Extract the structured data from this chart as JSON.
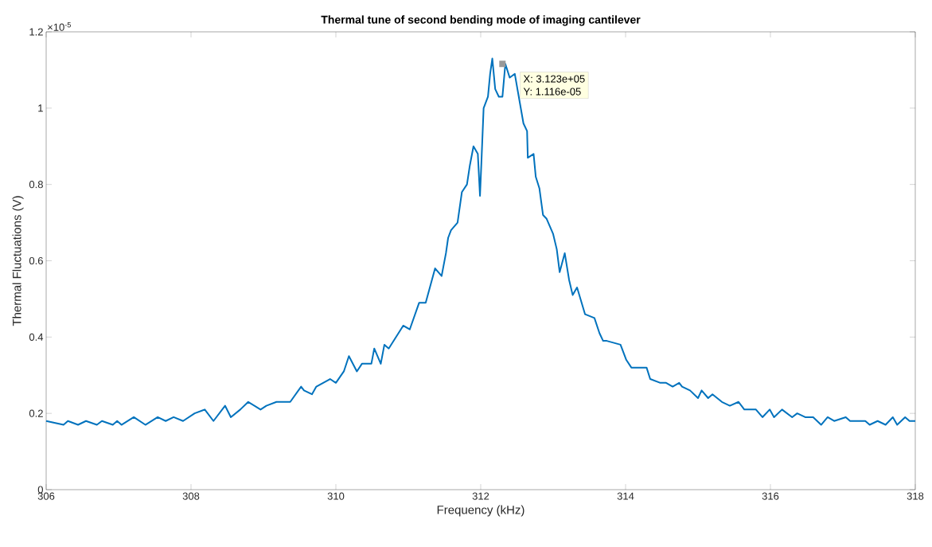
{
  "chart_data": {
    "type": "line",
    "title": "Thermal tune of second bending mode of imaging cantilever",
    "xlabel": "Frequency (kHz)",
    "ylabel": "Thermal Fluctuations (V)",
    "x": [
      306.0,
      306.24,
      306.3,
      306.44,
      306.55,
      306.7,
      306.77,
      306.92,
      306.98,
      307.04,
      307.21,
      307.37,
      307.54,
      307.65,
      307.76,
      307.89,
      308.05,
      308.19,
      308.31,
      308.47,
      308.55,
      308.68,
      308.79,
      308.96,
      309.04,
      309.18,
      309.29,
      309.37,
      309.52,
      309.56,
      309.67,
      309.73,
      309.92,
      310.0,
      310.11,
      310.18,
      310.29,
      310.36,
      310.49,
      310.53,
      310.62,
      310.67,
      310.73,
      310.93,
      311.02,
      311.15,
      311.24,
      311.37,
      311.46,
      311.52,
      311.55,
      311.59,
      311.68,
      311.74,
      311.81,
      311.85,
      311.9,
      311.96,
      311.99,
      312.01,
      312.04,
      312.1,
      312.13,
      312.16,
      312.2,
      312.25,
      312.3,
      312.34,
      312.4,
      312.47,
      312.59,
      312.64,
      312.65,
      312.73,
      312.76,
      312.81,
      312.86,
      312.91,
      313.0,
      313.05,
      313.09,
      313.16,
      313.22,
      313.27,
      313.33,
      313.44,
      313.57,
      313.64,
      313.69,
      313.74,
      313.93,
      314.01,
      314.08,
      314.29,
      314.34,
      314.48,
      314.56,
      314.65,
      314.74,
      314.78,
      314.89,
      315.0,
      315.05,
      315.14,
      315.2,
      315.33,
      315.44,
      315.56,
      315.64,
      315.8,
      315.89,
      315.99,
      316.05,
      316.16,
      316.3,
      316.37,
      316.48,
      316.59,
      316.7,
      316.79,
      316.88,
      317.04,
      317.1,
      317.2,
      317.31,
      317.37,
      317.48,
      317.59,
      317.69,
      317.75,
      317.86,
      317.92,
      318.0
    ],
    "series": [
      {
        "color": "#0072bd",
        "values": [
          0.18,
          0.17,
          0.18,
          0.17,
          0.18,
          0.17,
          0.18,
          0.17,
          0.18,
          0.17,
          0.19,
          0.17,
          0.19,
          0.18,
          0.19,
          0.18,
          0.2,
          0.21,
          0.18,
          0.22,
          0.19,
          0.21,
          0.23,
          0.21,
          0.22,
          0.23,
          0.23,
          0.23,
          0.27,
          0.26,
          0.25,
          0.27,
          0.29,
          0.28,
          0.31,
          0.35,
          0.31,
          0.33,
          0.33,
          0.37,
          0.33,
          0.38,
          0.37,
          0.43,
          0.42,
          0.49,
          0.49,
          0.58,
          0.56,
          0.62,
          0.66,
          0.68,
          0.7,
          0.78,
          0.8,
          0.85,
          0.9,
          0.88,
          0.77,
          0.86,
          1.0,
          1.03,
          1.09,
          1.13,
          1.05,
          1.03,
          1.03,
          1.116,
          1.08,
          1.09,
          0.96,
          0.94,
          0.87,
          0.88,
          0.82,
          0.79,
          0.72,
          0.71,
          0.67,
          0.63,
          0.57,
          0.62,
          0.55,
          0.51,
          0.53,
          0.46,
          0.45,
          0.41,
          0.39,
          0.39,
          0.38,
          0.34,
          0.32,
          0.32,
          0.29,
          0.28,
          0.28,
          0.27,
          0.28,
          0.27,
          0.26,
          0.24,
          0.26,
          0.24,
          0.25,
          0.23,
          0.22,
          0.23,
          0.21,
          0.21,
          0.19,
          0.21,
          0.19,
          0.21,
          0.19,
          0.2,
          0.19,
          0.19,
          0.17,
          0.19,
          0.18,
          0.19,
          0.18,
          0.18,
          0.18,
          0.17,
          0.18,
          0.17,
          0.19,
          0.17,
          0.19,
          0.18,
          0.18
        ]
      }
    ],
    "xlim": [
      306,
      318
    ],
    "xticks": [
      306,
      308,
      310,
      312,
      314,
      316,
      318
    ],
    "ylim": [
      0,
      1.2
    ],
    "yticks": [
      0,
      0.2,
      0.4,
      0.6,
      0.8,
      1,
      1.2
    ],
    "annotations": [
      "×10$^{-5}$",
      {
        "text": "X: 3.123e+05",
        "x": 312.3,
        "y": 1.116
      },
      "Y: 1.116e-05"
    ]
  }
}
